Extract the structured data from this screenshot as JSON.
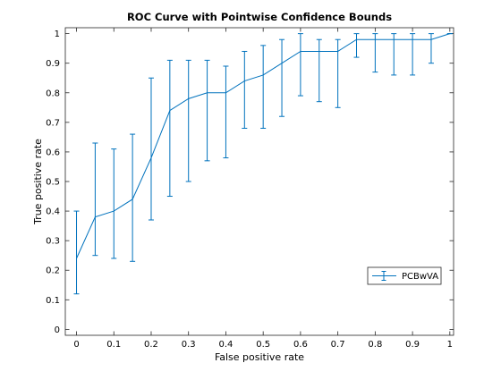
{
  "chart_data": {
    "type": "line",
    "title": "ROC Curve with Pointwise Confidence Bounds",
    "xlabel": "False positive rate",
    "ylabel": "True positive rate",
    "xlim": [
      -0.03,
      1.01
    ],
    "ylim": [
      -0.02,
      1.02
    ],
    "xticks": [
      0,
      0.1,
      0.2,
      0.3,
      0.4,
      0.5,
      0.6,
      0.7,
      0.8,
      0.9,
      1
    ],
    "xtick_labels": [
      "0",
      "0.1",
      "0.2",
      "0.3",
      "0.4",
      "0.5",
      "0.6",
      "0.7",
      "0.8",
      "0.9",
      "1"
    ],
    "yticks": [
      0,
      0.1,
      0.2,
      0.3,
      0.4,
      0.5,
      0.6,
      0.7,
      0.8,
      0.9,
      1
    ],
    "ytick_labels": [
      "0",
      "0.1",
      "0.2",
      "0.3",
      "0.4",
      "0.5",
      "0.6",
      "0.7",
      "0.8",
      "0.9",
      "1"
    ],
    "grid": false,
    "legend_position": "lower-right",
    "series_color": "#0072BD",
    "series": [
      {
        "name": "PCBwVA",
        "x": [
          0,
          0.05,
          0.1,
          0.15,
          0.2,
          0.25,
          0.3,
          0.35,
          0.4,
          0.45,
          0.5,
          0.55,
          0.6,
          0.65,
          0.7,
          0.75,
          0.8,
          0.85,
          0.9,
          0.95,
          1
        ],
        "y": [
          0.24,
          0.38,
          0.4,
          0.44,
          0.58,
          0.74,
          0.78,
          0.8,
          0.8,
          0.84,
          0.86,
          0.9,
          0.94,
          0.94,
          0.94,
          0.98,
          0.98,
          0.98,
          0.98,
          0.98,
          1.0
        ],
        "lower": [
          0.12,
          0.25,
          0.24,
          0.23,
          0.37,
          0.45,
          0.5,
          0.57,
          0.58,
          0.68,
          0.68,
          0.72,
          0.79,
          0.77,
          0.75,
          0.92,
          0.87,
          0.86,
          0.86,
          0.9,
          1.0
        ],
        "upper": [
          0.4,
          0.63,
          0.61,
          0.66,
          0.85,
          0.91,
          0.91,
          0.91,
          0.89,
          0.94,
          0.96,
          0.98,
          1.0,
          0.98,
          0.98,
          1.0,
          1.0,
          1.0,
          1.0,
          1.0,
          1.0
        ]
      }
    ]
  }
}
